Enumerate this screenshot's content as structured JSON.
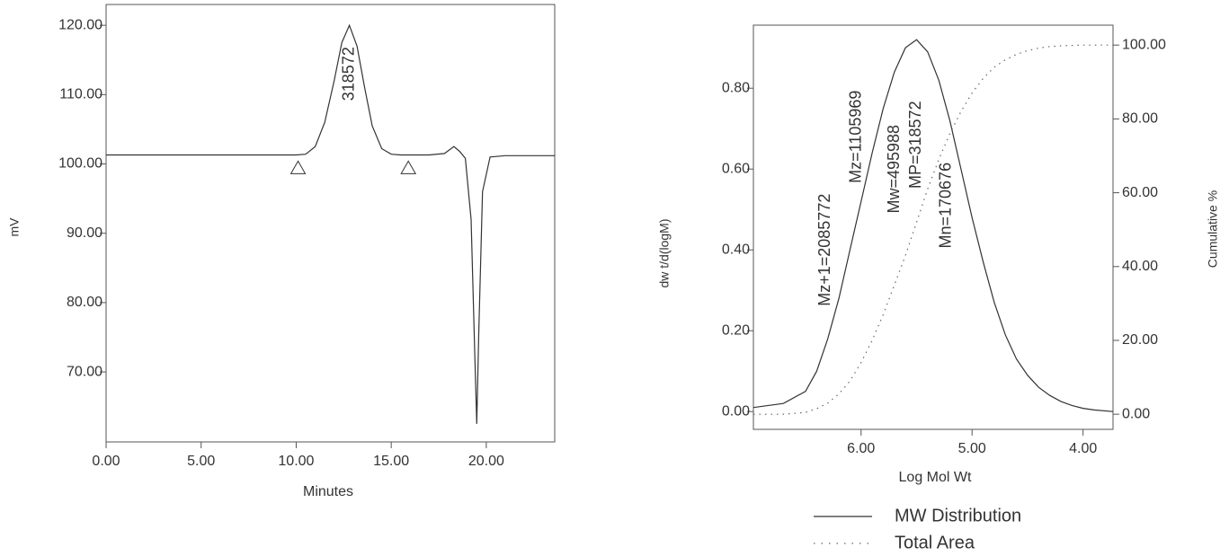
{
  "chart_data": [
    {
      "type": "line",
      "x_label": "Minutes",
      "y_label": "mV",
      "x": [
        0,
        2,
        4,
        6,
        8,
        10,
        10.5,
        11,
        11.5,
        12,
        12.4,
        12.8,
        13.2,
        13.6,
        14,
        14.5,
        15,
        15.5,
        16,
        17,
        17.8,
        18.3,
        18.6,
        18.9,
        19.2,
        19.4,
        19.5,
        19.6,
        19.8,
        20.2,
        21,
        22,
        23.6
      ],
      "values": [
        101.3,
        101.3,
        101.3,
        101.3,
        101.3,
        101.3,
        101.4,
        102.5,
        106,
        112,
        117.5,
        120,
        117,
        111,
        105.5,
        102.2,
        101.4,
        101.3,
        101.3,
        101.3,
        101.5,
        102.5,
        101.8,
        100.8,
        92,
        72,
        62.5,
        75,
        96,
        101,
        101.2,
        101.2,
        101.2
      ],
      "color": "#333333",
      "xlim": [
        0,
        23.6
      ],
      "ylim": [
        59.9,
        123
      ],
      "xticks": [
        {
          "value": 0,
          "label": "0.00"
        },
        {
          "value": 5,
          "label": "5.00"
        },
        {
          "value": 10,
          "label": "10.00"
        },
        {
          "value": 15,
          "label": "15.00"
        },
        {
          "value": 20,
          "label": "20.00"
        }
      ],
      "yticks": [
        {
          "value": 70,
          "label": "70.00"
        },
        {
          "value": 80,
          "label": "80.00"
        },
        {
          "value": 90,
          "label": "90.00"
        },
        {
          "value": 100,
          "label": "100.00"
        },
        {
          "value": 110,
          "label": "110.00"
        },
        {
          "value": 120,
          "label": "120.00"
        }
      ],
      "annotations": [
        {
          "text": "318572",
          "x": 12.8,
          "y": 113
        }
      ],
      "markers": [
        {
          "x": 10.1,
          "y": 100.4
        },
        {
          "x": 15.9,
          "y": 100.4
        }
      ]
    },
    {
      "type": "line",
      "x_label": "Log Mol Wt",
      "y_label": "dw t/d(logM)",
      "y2_label": "Cumulative %",
      "x": [
        6.97,
        6.7,
        6.5,
        6.4,
        6.3,
        6.2,
        6.1,
        6.0,
        5.9,
        5.8,
        5.7,
        5.6,
        5.5,
        5.4,
        5.3,
        5.2,
        5.1,
        5.0,
        4.9,
        4.8,
        4.7,
        4.6,
        4.5,
        4.4,
        4.3,
        4.2,
        4.1,
        4.0,
        3.9,
        3.73
      ],
      "series": [
        {
          "name": "MW Distribution",
          "color": "#333333",
          "dash": "solid",
          "values": [
            0.01,
            0.02,
            0.05,
            0.1,
            0.18,
            0.28,
            0.4,
            0.52,
            0.64,
            0.75,
            0.84,
            0.9,
            0.92,
            0.89,
            0.82,
            0.72,
            0.6,
            0.48,
            0.37,
            0.27,
            0.19,
            0.13,
            0.09,
            0.06,
            0.04,
            0.025,
            0.015,
            0.008,
            0.004,
            0.0
          ]
        },
        {
          "name": "Total Area",
          "color": "#666666",
          "dash": "dotted",
          "axis": "y2",
          "values": [
            0,
            0,
            0.5,
            1.5,
            3,
            5.5,
            9,
            14,
            20,
            27,
            35,
            43,
            52,
            61,
            69,
            76,
            82,
            87,
            91,
            94,
            96,
            97.5,
            98.5,
            99.2,
            99.6,
            99.8,
            99.9,
            100,
            100,
            100
          ]
        }
      ],
      "xlim": [
        6.97,
        3.73
      ],
      "ylim": [
        -0.044,
        0.956
      ],
      "y2lim": [
        -4.1,
        105.4
      ],
      "xticks": [
        {
          "value": 6,
          "label": "6.00"
        },
        {
          "value": 5,
          "label": "5.00"
        },
        {
          "value": 4,
          "label": "4.00"
        }
      ],
      "yticks": [
        {
          "value": 0,
          "label": "0.00"
        },
        {
          "value": 0.2,
          "label": "0.20"
        },
        {
          "value": 0.4,
          "label": "0.40"
        },
        {
          "value": 0.6,
          "label": "0.60"
        },
        {
          "value": 0.8,
          "label": "0.80"
        }
      ],
      "y2ticks": [
        {
          "value": 0,
          "label": "0.00"
        },
        {
          "value": 20,
          "label": "20.00"
        },
        {
          "value": 40,
          "label": "40.00"
        },
        {
          "value": 60,
          "label": "60.00"
        },
        {
          "value": 80,
          "label": "80.00"
        },
        {
          "value": 100,
          "label": "100.00"
        }
      ],
      "annotations": [
        {
          "text": "Mz+1=2085772",
          "x": 6.32,
          "y": 0.4
        },
        {
          "text": "Mz=1105969",
          "x": 6.04,
          "y": 0.68
        },
        {
          "text": "Mw=495988",
          "x": 5.695,
          "y": 0.6
        },
        {
          "text": "MP=318572",
          "x": 5.503,
          "y": 0.66
        },
        {
          "text": "Mn=170676",
          "x": 5.232,
          "y": 0.51
        }
      ],
      "legend": "bottom"
    }
  ]
}
